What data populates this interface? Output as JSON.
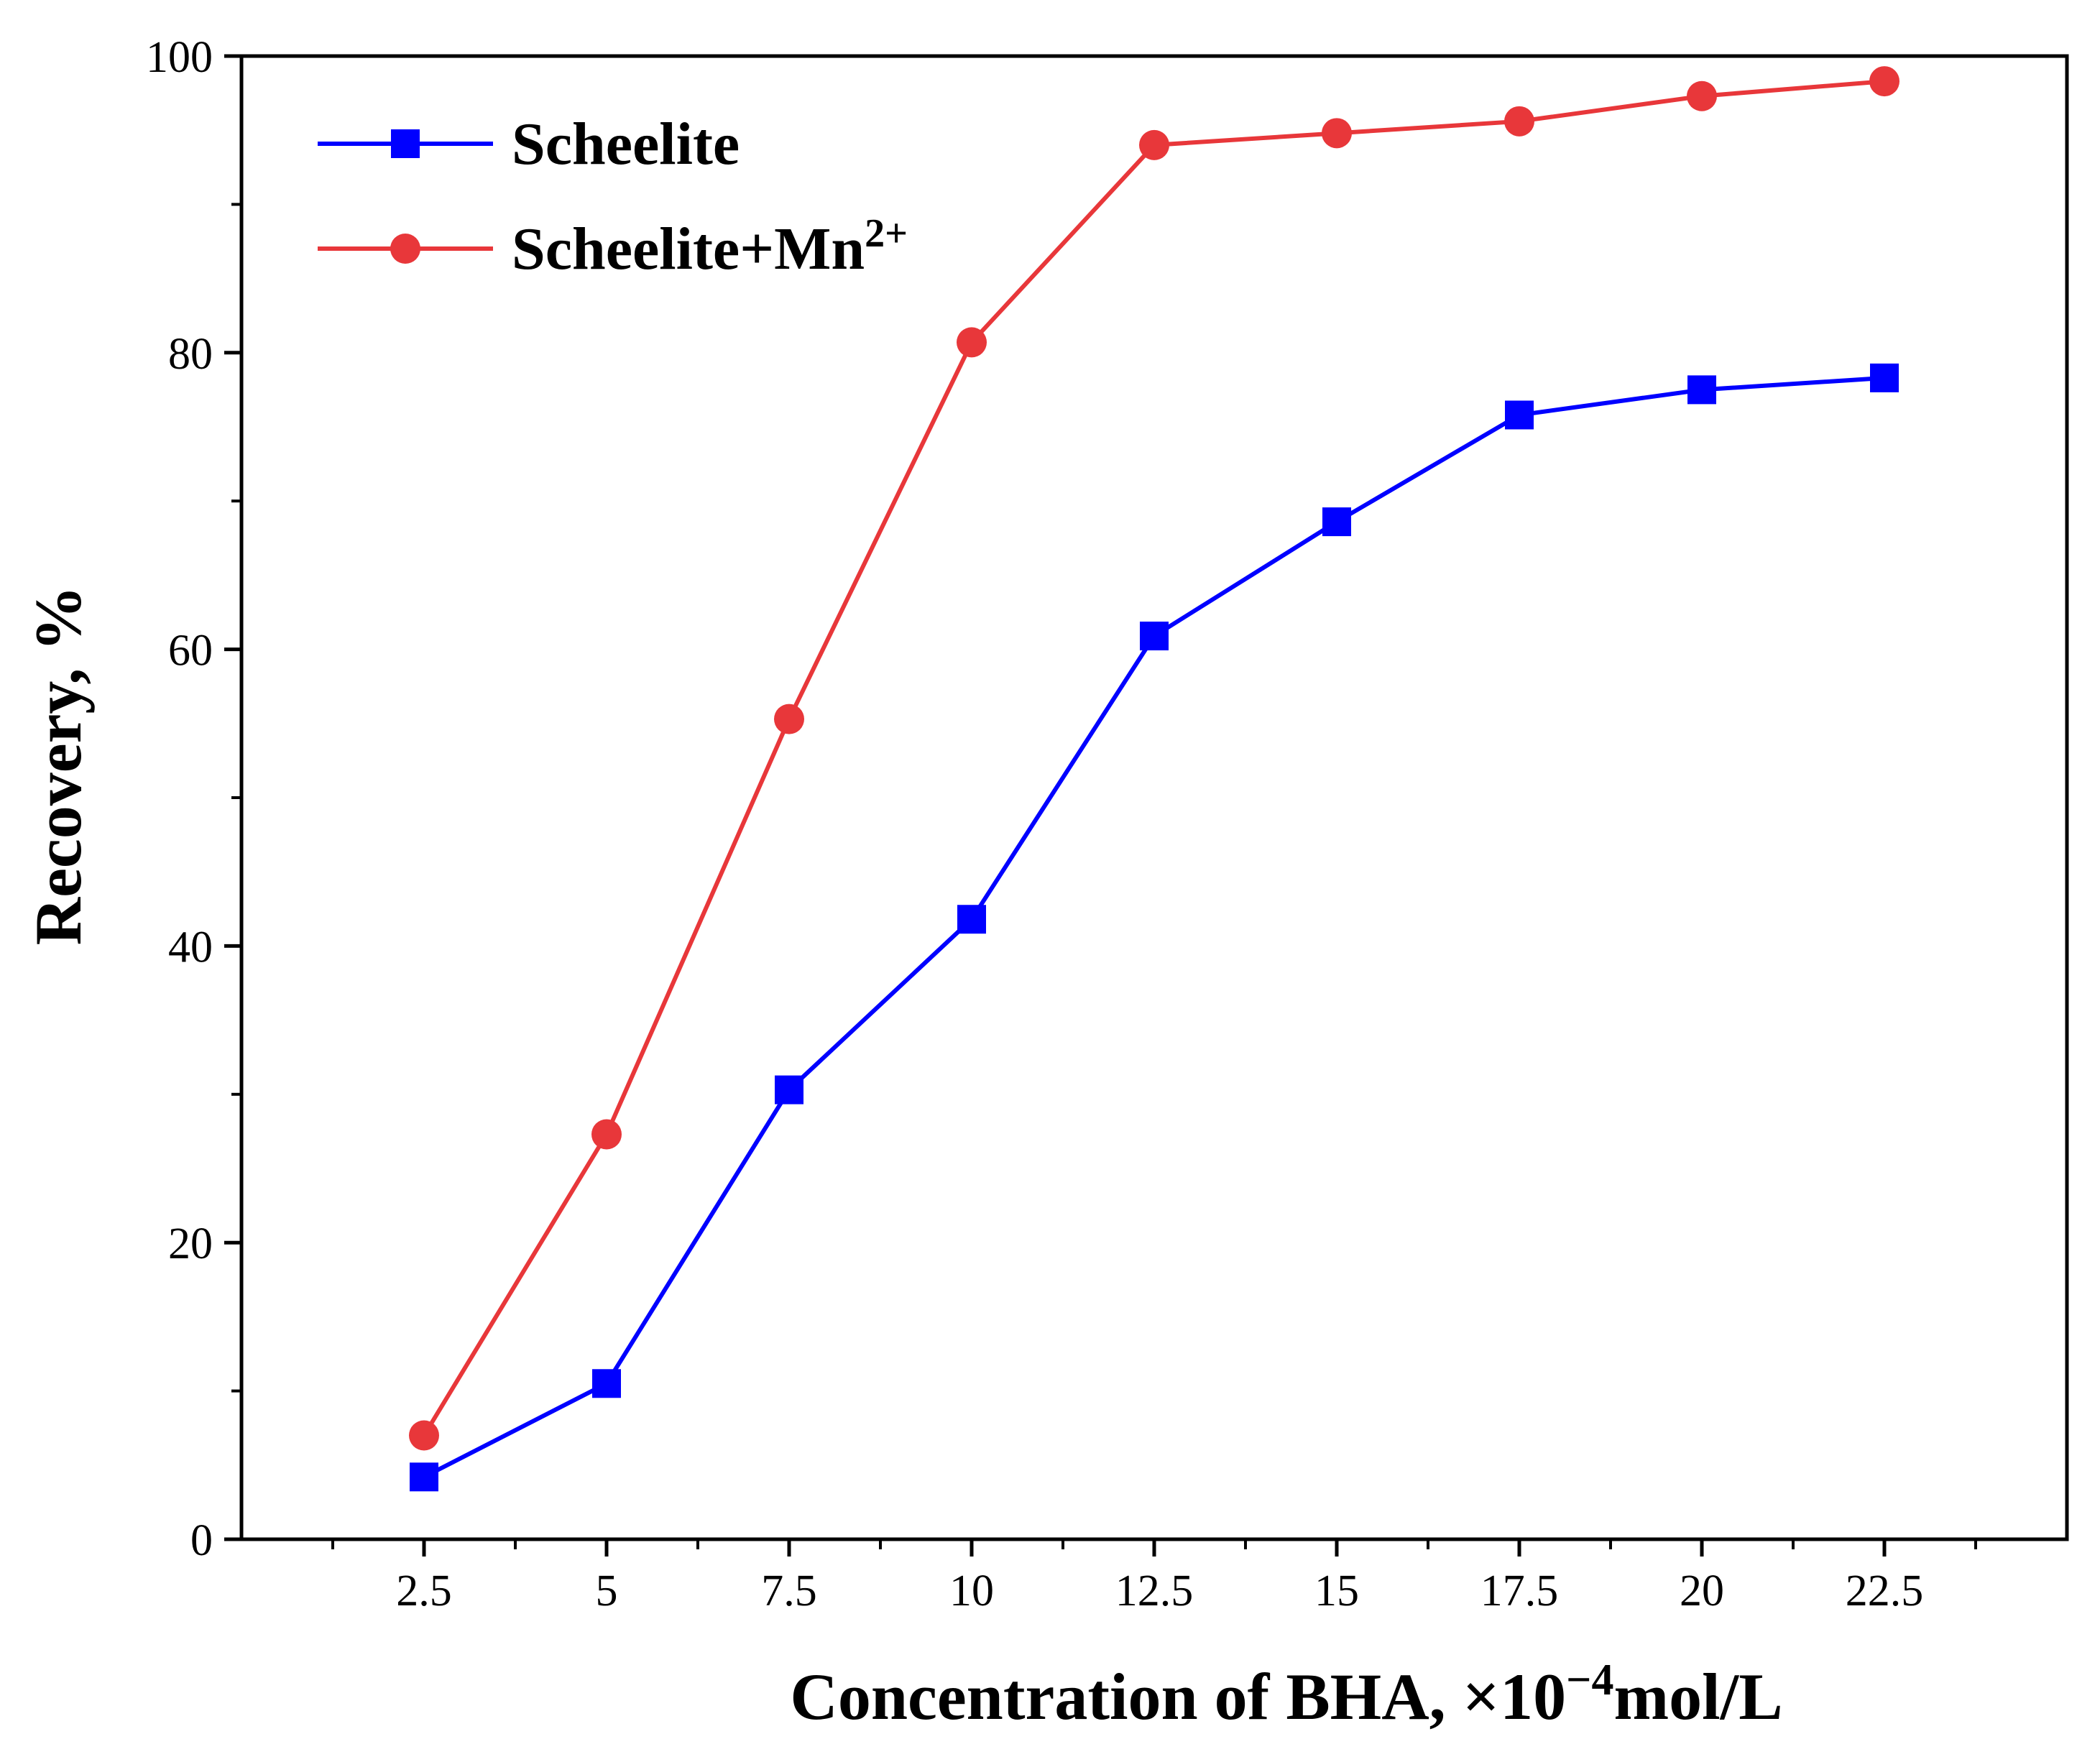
{
  "chart_data": {
    "type": "line",
    "title": "",
    "xlabel": {
      "prefix": "Concentration of BHA, ×10",
      "exponent": "−4",
      "suffix": "mol/L"
    },
    "ylabel": "Recovery, %",
    "x": [
      2.5,
      5,
      7.5,
      10,
      12.5,
      15,
      17.5,
      20,
      22.5
    ],
    "xlim": [
      0,
      25
    ],
    "ylim": [
      0,
      100
    ],
    "x_tick_labels": [
      "2.5",
      "5",
      "7.5",
      "10",
      "12.5",
      "15",
      "17.5",
      "20",
      "22.5"
    ],
    "y_tick_labels": [
      "0",
      "20",
      "40",
      "60",
      "80",
      "100"
    ],
    "grid": false,
    "legend_position": "top-left",
    "series": [
      {
        "name": "Scheelite",
        "name_superscript": "",
        "marker": "square",
        "color": "#0000ff",
        "values": [
          4.2,
          10.5,
          30.3,
          41.8,
          60.9,
          68.6,
          75.8,
          77.5,
          78.3
        ]
      },
      {
        "name": "Scheelite+Mn",
        "name_superscript": "2+",
        "marker": "circle",
        "color": "#e8373a",
        "values": [
          7.0,
          27.3,
          55.3,
          80.7,
          94.0,
          94.8,
          95.6,
          97.3,
          98.3
        ]
      }
    ]
  }
}
